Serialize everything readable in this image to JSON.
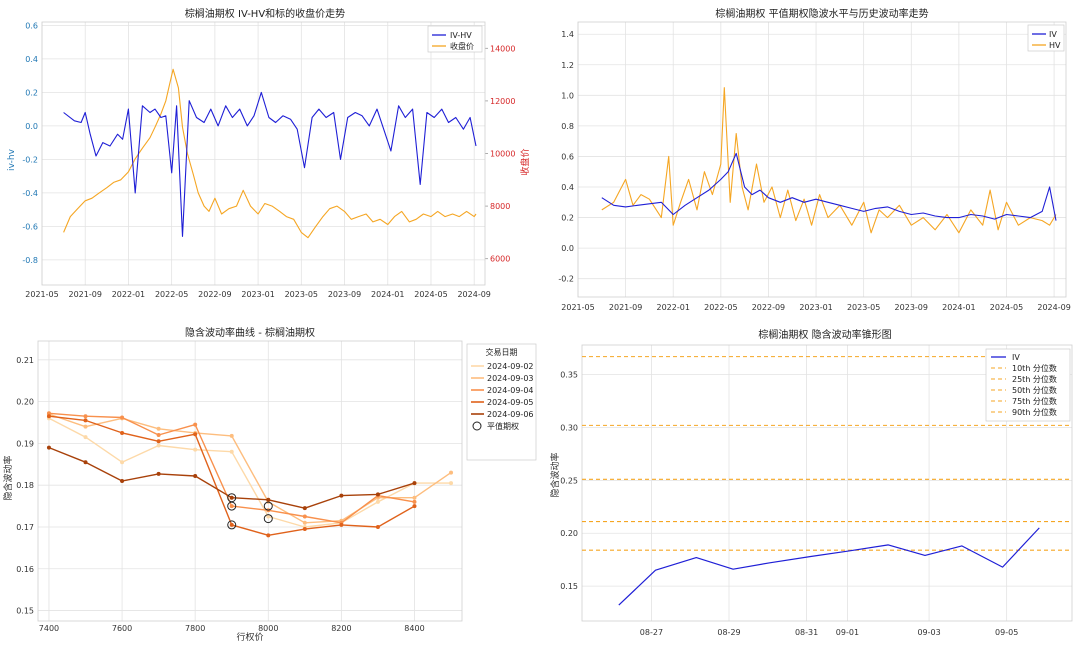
{
  "chart_data": [
    {
      "type": "line",
      "title": "棕榈油期权 IV-HV和标的收盘价走势",
      "ylabel": "iv-hv",
      "ylabel_right": "收盘价",
      "x_ticks": [
        "2021-05",
        "2021-09",
        "2022-01",
        "2022-05",
        "2022-09",
        "2023-01",
        "2023-05",
        "2023-09",
        "2024-01",
        "2024-05",
        "2024-09"
      ],
      "ylim": [
        -0.95,
        0.62
      ],
      "y_ticks": [
        "0.6",
        "0.4",
        "0.2",
        "0.0",
        "-0.2",
        "-0.4",
        "-0.6",
        "-0.8"
      ],
      "ylim_right": [
        5000,
        15000
      ],
      "y_ticks_right": [
        "14000",
        "12000",
        "10000",
        "8000",
        "6000"
      ],
      "grid": true,
      "legend_position": "top-right",
      "series": [
        {
          "name": "IV-HV",
          "color": "#1f1fd6",
          "x": [
            "2021-07-01",
            "2021-08-01",
            "2021-08-20",
            "2021-09-01",
            "2021-09-15",
            "2021-10-01",
            "2021-10-20",
            "2021-11-10",
            "2021-12-01",
            "2021-12-15",
            "2022-01-01",
            "2022-01-20",
            "2022-02-10",
            "2022-03-01",
            "2022-03-15",
            "2022-04-01",
            "2022-04-15",
            "2022-05-01",
            "2022-05-15",
            "2022-06-01",
            "2022-06-20",
            "2022-07-10",
            "2022-08-01",
            "2022-08-20",
            "2022-09-10",
            "2022-10-01",
            "2022-10-20",
            "2022-11-10",
            "2022-12-01",
            "2022-12-20",
            "2023-01-10",
            "2023-02-01",
            "2023-02-20",
            "2023-03-10",
            "2023-04-01",
            "2023-04-20",
            "2023-05-10",
            "2023-06-01",
            "2023-06-20",
            "2023-07-10",
            "2023-08-01",
            "2023-08-20",
            "2023-09-10",
            "2023-10-01",
            "2023-10-20",
            "2023-11-10",
            "2023-12-01",
            "2023-12-20",
            "2024-01-10",
            "2024-02-01",
            "2024-02-20",
            "2024-03-10",
            "2024-04-01",
            "2024-04-20",
            "2024-05-10",
            "2024-06-01",
            "2024-06-20",
            "2024-07-10",
            "2024-08-01",
            "2024-08-20",
            "2024-09-06"
          ],
          "y": [
            0.08,
            0.03,
            0.02,
            0.08,
            -0.05,
            -0.18,
            -0.1,
            -0.12,
            -0.05,
            -0.08,
            0.1,
            -0.4,
            0.12,
            0.08,
            0.1,
            0.05,
            0.06,
            -0.28,
            0.12,
            -0.66,
            0.15,
            0.05,
            0.02,
            0.1,
            0.0,
            0.12,
            0.05,
            0.1,
            0.0,
            0.06,
            0.2,
            0.05,
            0.02,
            0.06,
            0.04,
            -0.02,
            -0.25,
            0.05,
            0.1,
            0.05,
            0.08,
            -0.2,
            0.05,
            0.08,
            0.06,
            0.0,
            0.1,
            -0.02,
            -0.15,
            0.12,
            0.05,
            0.1,
            -0.35,
            0.08,
            0.05,
            0.1,
            0.02,
            0.05,
            -0.02,
            0.05,
            -0.12
          ]
        },
        {
          "name": "收盘价",
          "color": "#f5a623",
          "axis": "right",
          "x": [
            "2021-07-01",
            "2021-07-20",
            "2021-08-10",
            "2021-09-01",
            "2021-09-20",
            "2021-10-10",
            "2021-11-01",
            "2021-11-20",
            "2021-12-10",
            "2022-01-01",
            "2022-01-20",
            "2022-02-10",
            "2022-03-01",
            "2022-03-15",
            "2022-04-01",
            "2022-04-15",
            "2022-04-25",
            "2022-05-05",
            "2022-05-20",
            "2022-06-01",
            "2022-06-15",
            "2022-07-01",
            "2022-07-15",
            "2022-08-01",
            "2022-08-15",
            "2022-09-01",
            "2022-09-20",
            "2022-10-10",
            "2022-11-01",
            "2022-11-20",
            "2022-12-10",
            "2023-01-01",
            "2023-01-20",
            "2023-02-10",
            "2023-03-01",
            "2023-03-20",
            "2023-04-10",
            "2023-05-01",
            "2023-05-20",
            "2023-06-10",
            "2023-07-01",
            "2023-07-20",
            "2023-08-10",
            "2023-09-01",
            "2023-09-20",
            "2023-10-10",
            "2023-11-01",
            "2023-11-20",
            "2023-12-10",
            "2024-01-01",
            "2024-01-20",
            "2024-02-10",
            "2024-03-01",
            "2024-03-20",
            "2024-04-10",
            "2024-05-01",
            "2024-05-20",
            "2024-06-10",
            "2024-07-01",
            "2024-07-20",
            "2024-08-10",
            "2024-09-01",
            "2024-09-06"
          ],
          "y": [
            7000,
            7600,
            7900,
            8200,
            8300,
            8500,
            8700,
            8900,
            9000,
            9300,
            9800,
            10200,
            10600,
            11000,
            11500,
            12000,
            12600,
            13200,
            12500,
            11000,
            10000,
            9200,
            8500,
            8000,
            7800,
            8300,
            7700,
            7900,
            8000,
            8600,
            8000,
            7700,
            8100,
            8000,
            7800,
            7600,
            7500,
            7000,
            6800,
            7200,
            7600,
            7900,
            8000,
            7800,
            7500,
            7600,
            7700,
            7400,
            7500,
            7300,
            7600,
            7800,
            7400,
            7500,
            7700,
            7600,
            7800,
            7600,
            7700,
            7600,
            7800,
            7600,
            7700
          ]
        }
      ]
    },
    {
      "type": "line",
      "title": "棕榈油期权 平值期权隐波水平与历史波动率走势",
      "x_ticks": [
        "2021-05",
        "2021-09",
        "2022-01",
        "2022-05",
        "2022-09",
        "2023-01",
        "2023-05",
        "2023-09",
        "2024-01",
        "2024-05",
        "2024-09"
      ],
      "ylim": [
        -0.32,
        1.48
      ],
      "y_ticks": [
        "1.4",
        "1.2",
        "1.0",
        "0.8",
        "0.6",
        "0.4",
        "0.2",
        "0.0",
        "-0.2"
      ],
      "grid": true,
      "legend_position": "top-right",
      "series": [
        {
          "name": "IV",
          "color": "#1f1fd6",
          "x": [
            "2021-07-01",
            "2021-08-01",
            "2021-09-01",
            "2021-10-01",
            "2021-11-01",
            "2021-12-01",
            "2022-01-01",
            "2022-02-01",
            "2022-03-01",
            "2022-04-01",
            "2022-05-01",
            "2022-05-20",
            "2022-06-10",
            "2022-07-01",
            "2022-07-20",
            "2022-08-10",
            "2022-09-01",
            "2022-10-01",
            "2022-11-01",
            "2022-12-01",
            "2023-01-01",
            "2023-02-01",
            "2023-03-01",
            "2023-04-01",
            "2023-05-01",
            "2023-06-01",
            "2023-07-01",
            "2023-08-01",
            "2023-09-01",
            "2023-10-01",
            "2023-11-01",
            "2023-12-01",
            "2024-01-01",
            "2024-02-01",
            "2024-03-01",
            "2024-04-01",
            "2024-05-01",
            "2024-06-01",
            "2024-07-01",
            "2024-08-01",
            "2024-08-20",
            "2024-09-06"
          ],
          "y": [
            0.33,
            0.28,
            0.27,
            0.28,
            0.29,
            0.3,
            0.22,
            0.28,
            0.33,
            0.38,
            0.45,
            0.5,
            0.62,
            0.4,
            0.35,
            0.38,
            0.33,
            0.3,
            0.33,
            0.3,
            0.32,
            0.3,
            0.28,
            0.26,
            0.24,
            0.26,
            0.27,
            0.24,
            0.22,
            0.23,
            0.21,
            0.2,
            0.2,
            0.22,
            0.21,
            0.19,
            0.22,
            0.21,
            0.2,
            0.24,
            0.4,
            0.18
          ]
        },
        {
          "name": "HV",
          "color": "#f5a623",
          "x": [
            "2021-07-01",
            "2021-08-01",
            "2021-09-01",
            "2021-09-20",
            "2021-10-10",
            "2021-11-01",
            "2021-12-01",
            "2021-12-20",
            "2022-01-01",
            "2022-01-20",
            "2022-02-10",
            "2022-03-01",
            "2022-03-20",
            "2022-04-10",
            "2022-05-01",
            "2022-05-10",
            "2022-05-25",
            "2022-06-10",
            "2022-06-25",
            "2022-07-10",
            "2022-08-01",
            "2022-08-20",
            "2022-09-10",
            "2022-10-01",
            "2022-10-20",
            "2022-11-10",
            "2022-12-01",
            "2022-12-20",
            "2023-01-10",
            "2023-02-01",
            "2023-03-01",
            "2023-04-01",
            "2023-05-01",
            "2023-05-20",
            "2023-06-10",
            "2023-07-01",
            "2023-08-01",
            "2023-09-01",
            "2023-10-01",
            "2023-11-01",
            "2023-12-01",
            "2024-01-01",
            "2024-02-01",
            "2024-03-01",
            "2024-03-20",
            "2024-04-10",
            "2024-05-01",
            "2024-06-01",
            "2024-07-01",
            "2024-08-01",
            "2024-08-20",
            "2024-09-06"
          ],
          "y": [
            0.25,
            0.3,
            0.45,
            0.28,
            0.35,
            0.32,
            0.2,
            0.6,
            0.15,
            0.3,
            0.45,
            0.25,
            0.5,
            0.35,
            0.55,
            1.05,
            0.3,
            0.75,
            0.4,
            0.25,
            0.55,
            0.3,
            0.4,
            0.2,
            0.38,
            0.18,
            0.32,
            0.15,
            0.35,
            0.2,
            0.28,
            0.15,
            0.3,
            0.1,
            0.25,
            0.2,
            0.28,
            0.15,
            0.2,
            0.12,
            0.22,
            0.1,
            0.25,
            0.15,
            0.38,
            0.12,
            0.3,
            0.15,
            0.2,
            0.18,
            0.15,
            0.22
          ]
        }
      ]
    },
    {
      "type": "line",
      "title": "隐含波动率曲线 - 棕榈油期权",
      "xlabel": "行权价",
      "ylabel": "隐含波动率",
      "xlim": [
        7370,
        8530
      ],
      "x_ticks": [
        "7400",
        "7600",
        "7800",
        "8000",
        "8200",
        "8400"
      ],
      "ylim": [
        0.1475,
        0.2145
      ],
      "y_ticks": [
        "0.21",
        "0.20",
        "0.19",
        "0.18",
        "0.17",
        "0.16",
        "0.15"
      ],
      "grid": true,
      "legend_position": "top-right",
      "legend_title": "交易日期",
      "atm_label": "平值期权",
      "series": [
        {
          "name": "2024-09-02",
          "color": "#fdd9a8",
          "x": [
            7400,
            7500,
            7600,
            7700,
            7800,
            7900,
            8000,
            8100,
            8200,
            8300,
            8400,
            8500
          ],
          "y": [
            0.196,
            0.1915,
            0.1855,
            0.1895,
            0.1885,
            0.188,
            0.1725,
            0.17,
            0.171,
            0.176,
            0.1805,
            0.1805
          ]
        },
        {
          "name": "2024-09-03",
          "color": "#fdbd7e",
          "x": [
            7400,
            7500,
            7600,
            7700,
            7800,
            7900,
            8000,
            8100,
            8200,
            8300,
            8400,
            8500
          ],
          "y": [
            0.197,
            0.194,
            0.196,
            0.1935,
            0.1925,
            0.1918,
            0.176,
            0.171,
            0.1715,
            0.177,
            0.177,
            0.183
          ]
        },
        {
          "name": "2024-09-04",
          "color": "#f8904c",
          "x": [
            7400,
            7500,
            7600,
            7700,
            7800,
            7900,
            8000,
            8100,
            8200,
            8300,
            8400
          ],
          "y": [
            0.1972,
            0.1965,
            0.1962,
            0.192,
            0.1945,
            0.175,
            0.174,
            0.1725,
            0.171,
            0.1775,
            0.176
          ]
        },
        {
          "name": "2024-09-05",
          "color": "#e0621b",
          "x": [
            7400,
            7500,
            7600,
            7700,
            7800,
            7900,
            8000,
            8100,
            8200,
            8300,
            8400
          ],
          "y": [
            0.1965,
            0.1955,
            0.1925,
            0.1905,
            0.1922,
            0.1705,
            0.168,
            0.1695,
            0.1705,
            0.17,
            0.175
          ]
        },
        {
          "name": "2024-09-06",
          "color": "#a8410a",
          "x": [
            7400,
            7500,
            7600,
            7700,
            7800,
            7900,
            8000,
            8100,
            8200,
            8300,
            8400
          ],
          "y": [
            0.189,
            0.1855,
            0.181,
            0.1827,
            0.1822,
            0.177,
            0.1765,
            0.1745,
            0.1775,
            0.1778,
            0.1805
          ]
        }
      ],
      "atm_points": [
        {
          "x": 7900,
          "y": 0.177
        },
        {
          "x": 7900,
          "y": 0.175
        },
        {
          "x": 7900,
          "y": 0.1705
        },
        {
          "x": 8000,
          "y": 0.175
        },
        {
          "x": 8000,
          "y": 0.172
        }
      ]
    },
    {
      "type": "line",
      "title": "棕榈油期权 隐含波动率锥形图",
      "ylabel": "隐含波动率",
      "xlim": [
        0,
        12
      ],
      "x_ticks": [
        {
          "pos": 1.7,
          "label": "08-27"
        },
        {
          "pos": 3.6,
          "label": "08-29"
        },
        {
          "pos": 5.5,
          "label": "08-31"
        },
        {
          "pos": 6.5,
          "label": "09-01"
        },
        {
          "pos": 8.5,
          "label": "09-03"
        },
        {
          "pos": 10.4,
          "label": "09-05"
        }
      ],
      "ylim": [
        0.117,
        0.378
      ],
      "y_ticks": [
        "0.35",
        "0.30",
        "0.25",
        "0.20",
        "0.15"
      ],
      "grid": true,
      "legend_position": "top-right",
      "series": [
        {
          "name": "IV",
          "color": "#1f1fd6",
          "x": [
            0.9,
            1.8,
            2.8,
            3.7,
            4.6,
            5.6,
            6.5,
            7.5,
            8.4,
            9.3,
            10.3,
            11.2
          ],
          "y": [
            0.132,
            0.165,
            0.177,
            0.166,
            0.172,
            0.178,
            0.183,
            0.189,
            0.179,
            0.188,
            0.168,
            0.205
          ]
        }
      ],
      "quantiles": [
        {
          "name": "10th 分位数",
          "value": 0.184
        },
        {
          "name": "25th 分位数",
          "value": 0.211
        },
        {
          "name": "50th 分位数",
          "value": 0.251
        },
        {
          "name": "75th 分位数",
          "value": 0.302
        },
        {
          "name": "90th 分位数",
          "value": 0.367
        }
      ],
      "quantile_color": "#f5a623"
    }
  ]
}
